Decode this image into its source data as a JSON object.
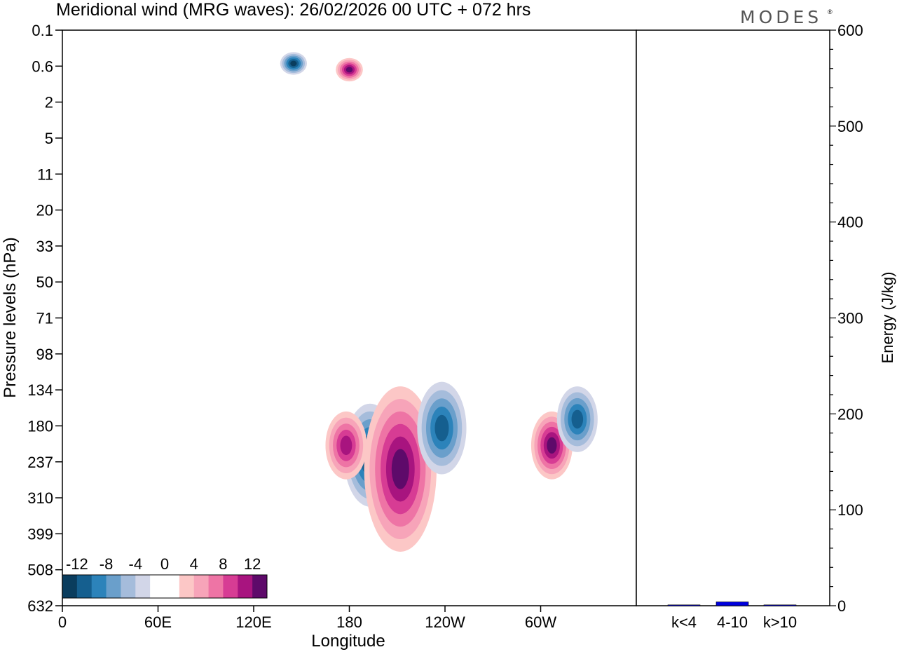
{
  "chart_data": [
    {
      "type": "heatmap",
      "title": "Meridional wind (MRG waves):  26/02/2026  00 UTC  + 072 hrs",
      "xlabel": "Longitude",
      "ylabel": "Pressure levels (hPa)",
      "x_ticks": [
        "0",
        "60E",
        "120E",
        "180",
        "120W",
        "60W"
      ],
      "y_ticks": [
        "0.1",
        "0.6",
        "2",
        "5",
        "11",
        "20",
        "33",
        "50",
        "71",
        "98",
        "134",
        "180",
        "237",
        "310",
        "399",
        "508",
        "632"
      ],
      "colorbar": {
        "labels": [
          "-12",
          "-8",
          "-4",
          "0",
          "4",
          "8",
          "12"
        ],
        "colors": [
          "#0a3d5e",
          "#155f8f",
          "#2c83ba",
          "#6a9fcb",
          "#a5bcdb",
          "#d2d6e8",
          "#ffffff",
          "#ffffff",
          "#fcc7c6",
          "#f7a4b9",
          "#ee74a5",
          "#d73c94",
          "#a8147f",
          "#5e0a6a"
        ]
      },
      "features": [
        {
          "sign": "neg",
          "lon": 193,
          "p_top": 150,
          "p_bottom": 330,
          "min": -14
        },
        {
          "sign": "pos",
          "lon": 212,
          "p_top": 130,
          "p_bottom": 450,
          "max": 14
        },
        {
          "sign": "neg",
          "lon": 238,
          "p_top": 125,
          "p_bottom": 260,
          "min": -10
        },
        {
          "sign": "pos",
          "lon": 178,
          "p_top": 160,
          "p_bottom": 270,
          "max": 10
        },
        {
          "sign": "pos",
          "lon": 307,
          "p_top": 160,
          "p_bottom": 270,
          "max": 14
        },
        {
          "sign": "neg",
          "lon": 323,
          "p_top": 130,
          "p_bottom": 220,
          "min": -10
        },
        {
          "sign": "neg",
          "lon": 145,
          "p_top": 0.3,
          "p_bottom": 0.8,
          "min": -12
        },
        {
          "sign": "pos",
          "lon": 180,
          "p_top": 0.4,
          "p_bottom": 1.0,
          "max": 12
        }
      ]
    },
    {
      "type": "bar",
      "categories": [
        "k<4",
        "4-10",
        "k>10"
      ],
      "values": [
        0,
        4,
        0
      ],
      "ylabel": "Energy (J/kg)",
      "ylim": [
        0,
        600
      ],
      "y_ticks": [
        "0",
        "100",
        "200",
        "300",
        "400",
        "500",
        "600"
      ],
      "colors": {
        "bar": "#0000dd"
      }
    }
  ],
  "brand": "MODES",
  "brand_mark": "®"
}
